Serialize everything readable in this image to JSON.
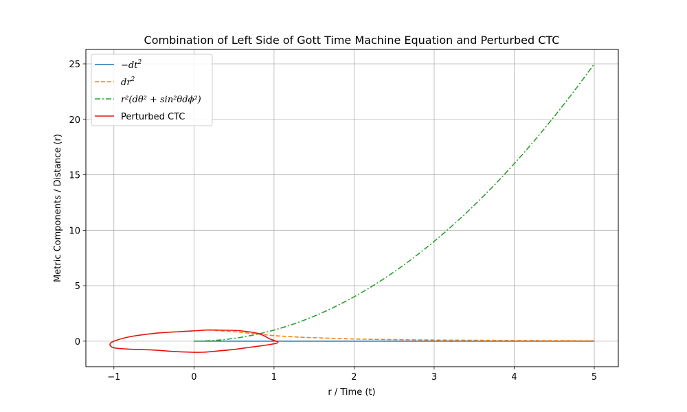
{
  "chart_data": {
    "type": "line",
    "title": "Combination of Left Side of Gott Time Machine Equation and Perturbed CTC",
    "xlabel": "r / Time (t)",
    "ylabel": "Metric Components / Distance (r)",
    "xlim": [
      -1.35,
      5.3
    ],
    "ylim": [
      -2.3,
      26.3
    ],
    "xticks": [
      -1,
      0,
      1,
      2,
      3,
      4,
      5
    ],
    "yticks": [
      0,
      5,
      10,
      15,
      20,
      25
    ],
    "xtick_labels": [
      "−1",
      "0",
      "1",
      "2",
      "3",
      "4",
      "5"
    ],
    "ytick_labels": [
      "0",
      "5",
      "10",
      "15",
      "20",
      "25"
    ],
    "grid": true,
    "legend_placement": "top-left",
    "series": [
      {
        "name": "−dt²",
        "legend_label": {
          "base": "−dt",
          "sup": "2"
        },
        "color": "#1f77b4",
        "style": "solid",
        "x": [
          0,
          0.5,
          1,
          1.5,
          2,
          2.5,
          3,
          3.5,
          4,
          4.5,
          5
        ],
        "y": [
          0,
          0,
          0,
          0,
          0,
          0,
          0,
          0,
          0,
          0,
          0
        ]
      },
      {
        "name": "dr²",
        "legend_label": {
          "base": "dr",
          "sup": "2"
        },
        "color": "#ff7f0e",
        "style": "dashed",
        "x": [
          0.1,
          0.2,
          0.3,
          0.5,
          0.75,
          1,
          1.25,
          1.5,
          2,
          2.5,
          3,
          3.5,
          4,
          4.5,
          5
        ],
        "y": [
          1.0,
          1.0,
          0.95,
          0.85,
          0.68,
          0.5,
          0.39,
          0.31,
          0.2,
          0.14,
          0.1,
          0.08,
          0.06,
          0.05,
          0.04
        ]
      },
      {
        "name": "r²(dθ² + sin²θdϕ²)",
        "legend_label": "r²(dθ² + sin²θdϕ²)",
        "color": "#2ca02c",
        "style": "dashdot",
        "x": [
          0,
          0.25,
          0.5,
          0.75,
          1,
          1.25,
          1.5,
          1.75,
          2,
          2.25,
          2.5,
          2.75,
          3,
          3.25,
          3.5,
          3.75,
          4,
          4.25,
          4.5,
          4.75,
          5
        ],
        "y": [
          0,
          0.0625,
          0.25,
          0.5625,
          1,
          1.5625,
          2.25,
          3.0625,
          4,
          5.0625,
          6.25,
          7.5625,
          9,
          10.5625,
          12.25,
          14.0625,
          16,
          18.0625,
          20.25,
          22.5625,
          25
        ]
      },
      {
        "name": "Perturbed CTC",
        "legend_label": "Perturbed CTC",
        "color": "#e8100f",
        "style": "solid",
        "closed": true,
        "x": [
          1.05,
          0.95,
          0.7,
          0.55,
          0.35,
          0.1,
          -0.2,
          -0.5,
          -0.7,
          -0.85,
          -1.0,
          -1.05,
          -1.0,
          -0.8,
          -0.5,
          -0.2,
          0.05,
          0.15,
          0.3,
          0.55,
          0.8,
          0.95,
          1.05
        ],
        "y": [
          -0.1,
          -0.3,
          -0.55,
          -0.7,
          -0.85,
          -1.0,
          -0.95,
          -0.8,
          -0.75,
          -0.7,
          -0.6,
          -0.3,
          0,
          0.4,
          0.7,
          0.85,
          0.95,
          1.0,
          1.0,
          0.95,
          0.7,
          0.2,
          -0.1
        ]
      }
    ]
  }
}
